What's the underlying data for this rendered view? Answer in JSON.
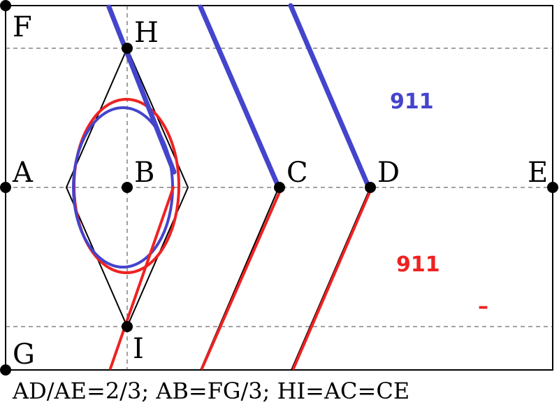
{
  "points": {
    "A": "A",
    "B": "B",
    "C": "C",
    "D": "D",
    "E": "E",
    "F": "F",
    "G": "G",
    "H": "H",
    "I": "I"
  },
  "labels": {
    "blue_number": "911",
    "red_number": "911",
    "red_dash": "–"
  },
  "caption": "AD/AE=2/3; AB=FG/3; HI=AC=CE",
  "colors": {
    "blue": "#4444cc",
    "red": "#ee2222",
    "black": "#000000"
  }
}
